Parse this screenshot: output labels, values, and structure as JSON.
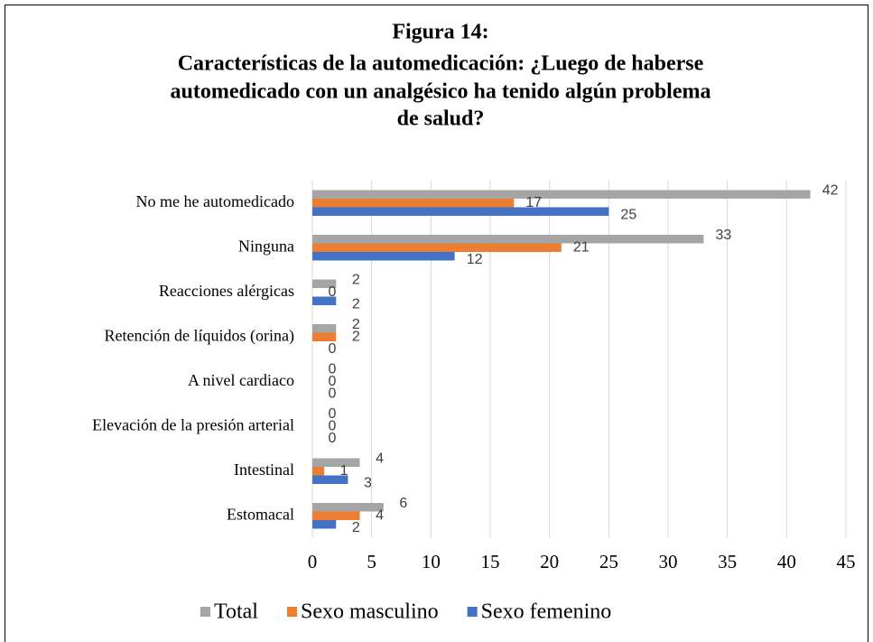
{
  "chart_data": {
    "type": "bar",
    "orientation": "horizontal",
    "title": [
      "Figura 14:",
      "Características de la automedicación: ¿Luego de haberse",
      "automedicado con un analgésico ha tenido algún problema",
      "de salud?"
    ],
    "categories": [
      "No me he automedicado",
      "Ninguna",
      "Reacciones alérgicas",
      "Retención de líquidos (orina)",
      "A nivel cardiaco",
      "Elevación de la presión arterial",
      "Intestinal",
      "Estomacal"
    ],
    "series": [
      {
        "name": "Total",
        "color": "#a5a5a5",
        "values": [
          42,
          33,
          2,
          2,
          0,
          0,
          4,
          6
        ]
      },
      {
        "name": "Sexo masculino",
        "color": "#ed7d31",
        "values": [
          17,
          21,
          0,
          2,
          0,
          0,
          1,
          4
        ]
      },
      {
        "name": "Sexo femenino",
        "color": "#4472c4",
        "values": [
          25,
          12,
          2,
          0,
          0,
          0,
          3,
          2
        ]
      }
    ],
    "xlim": [
      0,
      45
    ],
    "xticks": [
      0,
      5,
      10,
      15,
      20,
      25,
      30,
      35,
      40,
      45
    ],
    "grid": true,
    "legend": "bottom"
  }
}
